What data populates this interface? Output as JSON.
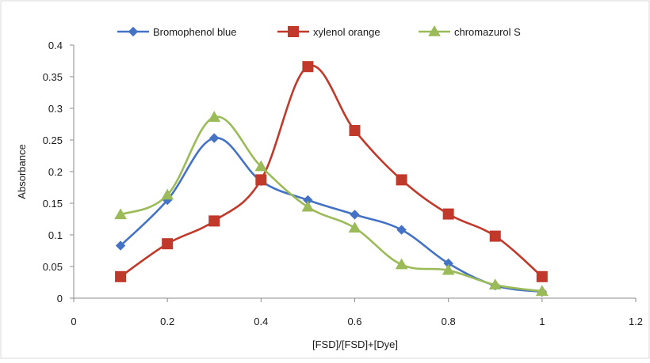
{
  "chart_data": {
    "type": "line",
    "title": "",
    "xlabel": "[FSD]/[FSD]+[Dye]",
    "ylabel": "Absorbance",
    "xlim": [
      0,
      1.2
    ],
    "ylim": [
      0,
      0.4
    ],
    "x_ticks": [
      "0",
      "0.2",
      "0.4",
      "0.6",
      "0.8",
      "1",
      "1.2"
    ],
    "y_ticks": [
      "0",
      "0.05",
      "0.1",
      "0.15",
      "0.2",
      "0.25",
      "0.3",
      "0.35",
      "0.4"
    ],
    "grid": false,
    "legend_position": "top",
    "smooth": true,
    "series": [
      {
        "name": "Bromophenol blue",
        "color": "#4472C4",
        "marker": "diamond",
        "x": [
          0.1,
          0.2,
          0.3,
          0.4,
          0.5,
          0.6,
          0.7,
          0.8,
          0.9,
          1.0
        ],
        "y": [
          0.083,
          0.155,
          0.253,
          0.185,
          0.155,
          0.132,
          0.108,
          0.055,
          0.02,
          0.01
        ]
      },
      {
        "name": "xylenol orange",
        "color": "#C0392B",
        "marker": "square",
        "x": [
          0.1,
          0.2,
          0.3,
          0.4,
          0.5,
          0.6,
          0.7,
          0.8,
          0.9,
          1.0
        ],
        "y": [
          0.034,
          0.086,
          0.122,
          0.187,
          0.366,
          0.265,
          0.187,
          0.133,
          0.098,
          0.034
        ]
      },
      {
        "name": "chromazurol S",
        "color": "#9BBB59",
        "marker": "triangle",
        "x": [
          0.1,
          0.2,
          0.3,
          0.4,
          0.5,
          0.6,
          0.7,
          0.8,
          0.9,
          1.0
        ],
        "y": [
          0.132,
          0.163,
          0.286,
          0.208,
          0.144,
          0.111,
          0.053,
          0.044,
          0.021,
          0.011
        ]
      }
    ]
  }
}
